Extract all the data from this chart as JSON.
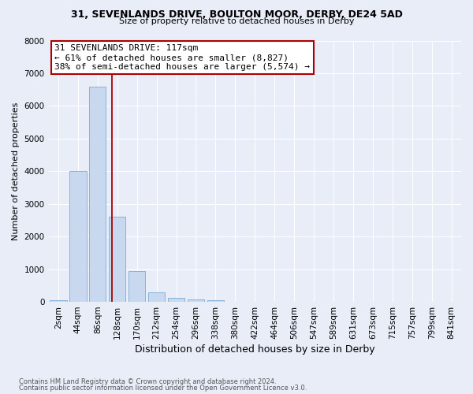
{
  "title1": "31, SEVENLANDS DRIVE, BOULTON MOOR, DERBY, DE24 5AD",
  "title2": "Size of property relative to detached houses in Derby",
  "xlabel": "Distribution of detached houses by size in Derby",
  "ylabel": "Number of detached properties",
  "categories": [
    "2sqm",
    "44sqm",
    "86sqm",
    "128sqm",
    "170sqm",
    "212sqm",
    "254sqm",
    "296sqm",
    "338sqm",
    "380sqm",
    "422sqm",
    "464sqm",
    "506sqm",
    "547sqm",
    "589sqm",
    "631sqm",
    "673sqm",
    "715sqm",
    "757sqm",
    "799sqm",
    "841sqm"
  ],
  "values": [
    60,
    4000,
    6600,
    2600,
    950,
    300,
    130,
    80,
    60,
    0,
    0,
    0,
    0,
    0,
    0,
    0,
    0,
    0,
    0,
    0,
    0
  ],
  "bar_color": "#c8d8ee",
  "bar_edge_color": "#7baad4",
  "vline_color": "#aa0000",
  "vline_index": 2.738,
  "ylim_max": 8000,
  "annotation_line1": "31 SEVENLANDS DRIVE: 117sqm",
  "annotation_line2": "← 61% of detached houses are smaller (8,827)",
  "annotation_line3": "38% of semi-detached houses are larger (5,574) →",
  "annotation_box_edgecolor": "#aa0000",
  "footnote1": "Contains HM Land Registry data © Crown copyright and database right 2024.",
  "footnote2": "Contains public sector information licensed under the Open Government Licence v3.0.",
  "background_color": "#e8edf8",
  "grid_color": "#ffffff",
  "title1_fontsize": 9,
  "title2_fontsize": 8,
  "ylabel_fontsize": 8,
  "xlabel_fontsize": 9,
  "tick_fontsize": 7.5,
  "annotation_fontsize": 8
}
